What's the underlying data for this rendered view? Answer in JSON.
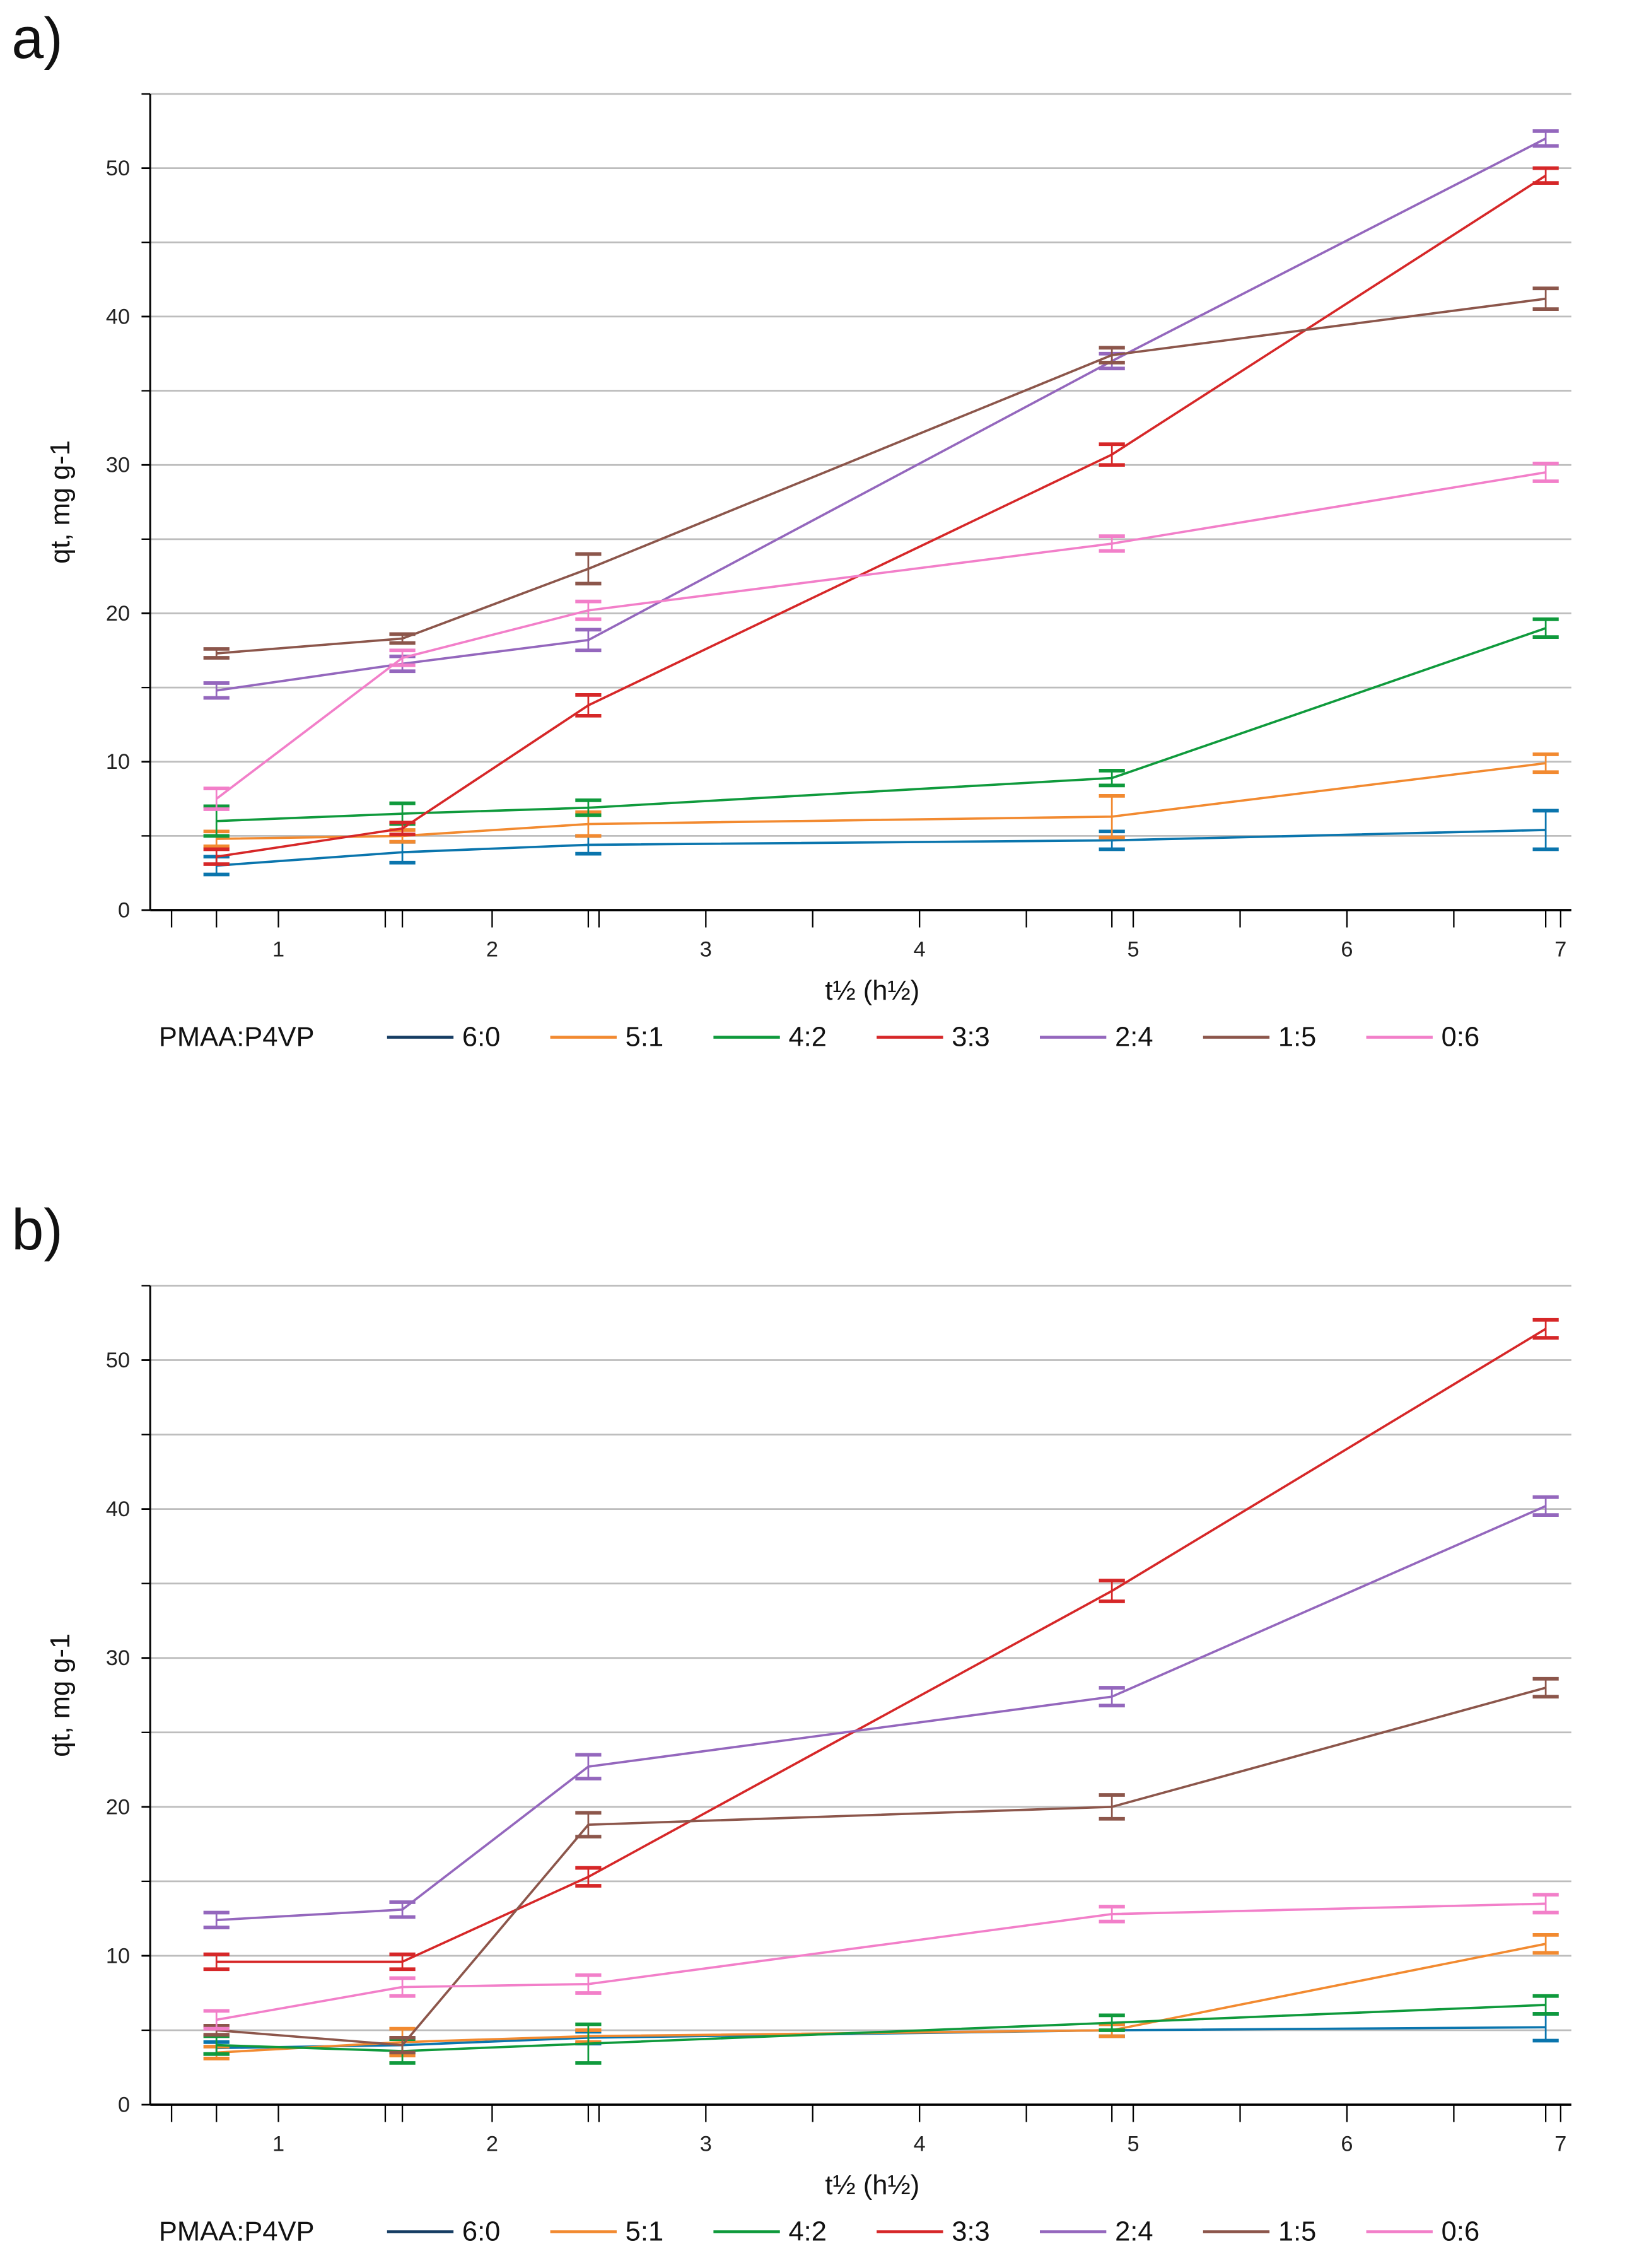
{
  "chart_data": [
    {
      "type": "line",
      "panel_label": "a)",
      "xlabel": "t½ (h½)",
      "ylabel": "qt, mg g-1",
      "xlim": [
        0.4,
        7.05
      ],
      "ylim": [
        0,
        55
      ],
      "xticks": [
        1,
        2,
        3,
        4,
        5,
        6,
        7
      ],
      "yticks": [
        0,
        10,
        20,
        30,
        40,
        50
      ],
      "grid": true,
      "legend_title": "PMAA:P4VP",
      "legend_position": "bottom",
      "x": [
        0.71,
        1.58,
        2.45,
        4.9,
        6.93
      ],
      "series": [
        {
          "name": "6:0",
          "color": "#0a75ad",
          "legend_color": "#163d63",
          "values": [
            3.0,
            3.9,
            4.4,
            4.7,
            5.4
          ],
          "errors": [
            0.6,
            0.7,
            0.6,
            0.6,
            1.3
          ]
        },
        {
          "name": "5:1",
          "color": "#f28a30",
          "values": [
            4.8,
            5.0,
            5.8,
            6.3,
            9.9
          ],
          "errors": [
            0.5,
            0.4,
            0.8,
            1.4,
            0.6
          ]
        },
        {
          "name": "4:2",
          "color": "#0f9a3c",
          "values": [
            6.0,
            6.5,
            6.9,
            8.9,
            19.0
          ],
          "errors": [
            1.0,
            0.7,
            0.5,
            0.5,
            0.6
          ]
        },
        {
          "name": "3:3",
          "color": "#d62728",
          "values": [
            3.6,
            5.5,
            13.8,
            30.7,
            49.5
          ],
          "errors": [
            0.5,
            0.4,
            0.7,
            0.7,
            0.5
          ]
        },
        {
          "name": "2:4",
          "color": "#9467bd",
          "values": [
            14.8,
            16.6,
            18.2,
            37.0,
            52.0
          ],
          "errors": [
            0.5,
            0.5,
            0.7,
            0.5,
            0.5
          ]
        },
        {
          "name": "1:5",
          "color": "#8c564b",
          "values": [
            17.3,
            18.3,
            23.0,
            37.4,
            41.2
          ],
          "errors": [
            0.3,
            0.3,
            1.0,
            0.5,
            0.7
          ]
        },
        {
          "name": "0:6",
          "color": "#f27fc9",
          "values": [
            7.5,
            17.0,
            20.2,
            24.7,
            29.5
          ],
          "errors": [
            0.7,
            0.5,
            0.6,
            0.5,
            0.6
          ]
        }
      ]
    },
    {
      "type": "line",
      "panel_label": "b)",
      "xlabel": "t½ (h½)",
      "ylabel": "qt, mg g-1",
      "xlim": [
        0.4,
        7.05
      ],
      "ylim": [
        0,
        55
      ],
      "xticks": [
        1,
        2,
        3,
        4,
        5,
        6,
        7
      ],
      "yticks": [
        0,
        10,
        20,
        30,
        40,
        50
      ],
      "grid": true,
      "legend_title": "PMAA:P4VP",
      "legend_position": "bottom",
      "x": [
        0.71,
        1.58,
        2.45,
        4.9,
        6.93
      ],
      "series": [
        {
          "name": "6:0",
          "color": "#0a75ad",
          "legend_color": "#163d63",
          "values": [
            3.8,
            4.0,
            4.5,
            5.0,
            5.2
          ],
          "errors": [
            0.4,
            0.5,
            0.4,
            0.4,
            0.9
          ]
        },
        {
          "name": "5:1",
          "color": "#f28a30",
          "values": [
            3.5,
            4.2,
            4.6,
            5.0,
            10.8
          ],
          "errors": [
            0.4,
            0.9,
            0.4,
            0.4,
            0.6
          ]
        },
        {
          "name": "4:2",
          "color": "#0f9a3c",
          "values": [
            4.0,
            3.6,
            4.1,
            5.5,
            6.7
          ],
          "errors": [
            0.6,
            0.8,
            1.3,
            0.5,
            0.6
          ]
        },
        {
          "name": "3:3",
          "color": "#d62728",
          "values": [
            9.6,
            9.6,
            15.3,
            34.5,
            52.1
          ],
          "errors": [
            0.5,
            0.5,
            0.6,
            0.7,
            0.6
          ]
        },
        {
          "name": "2:4",
          "color": "#9467bd",
          "values": [
            12.4,
            13.1,
            22.7,
            27.4,
            40.2
          ],
          "errors": [
            0.5,
            0.5,
            0.8,
            0.6,
            0.6
          ]
        },
        {
          "name": "1:5",
          "color": "#8c564b",
          "values": [
            5.0,
            4.0,
            18.8,
            20.0,
            28.0
          ],
          "errors": [
            0.3,
            0.5,
            0.8,
            0.8,
            0.6
          ]
        },
        {
          "name": "0:6",
          "color": "#f27fc9",
          "values": [
            5.7,
            7.9,
            8.1,
            12.8,
            13.5
          ],
          "errors": [
            0.6,
            0.6,
            0.6,
            0.5,
            0.6
          ]
        }
      ]
    }
  ]
}
